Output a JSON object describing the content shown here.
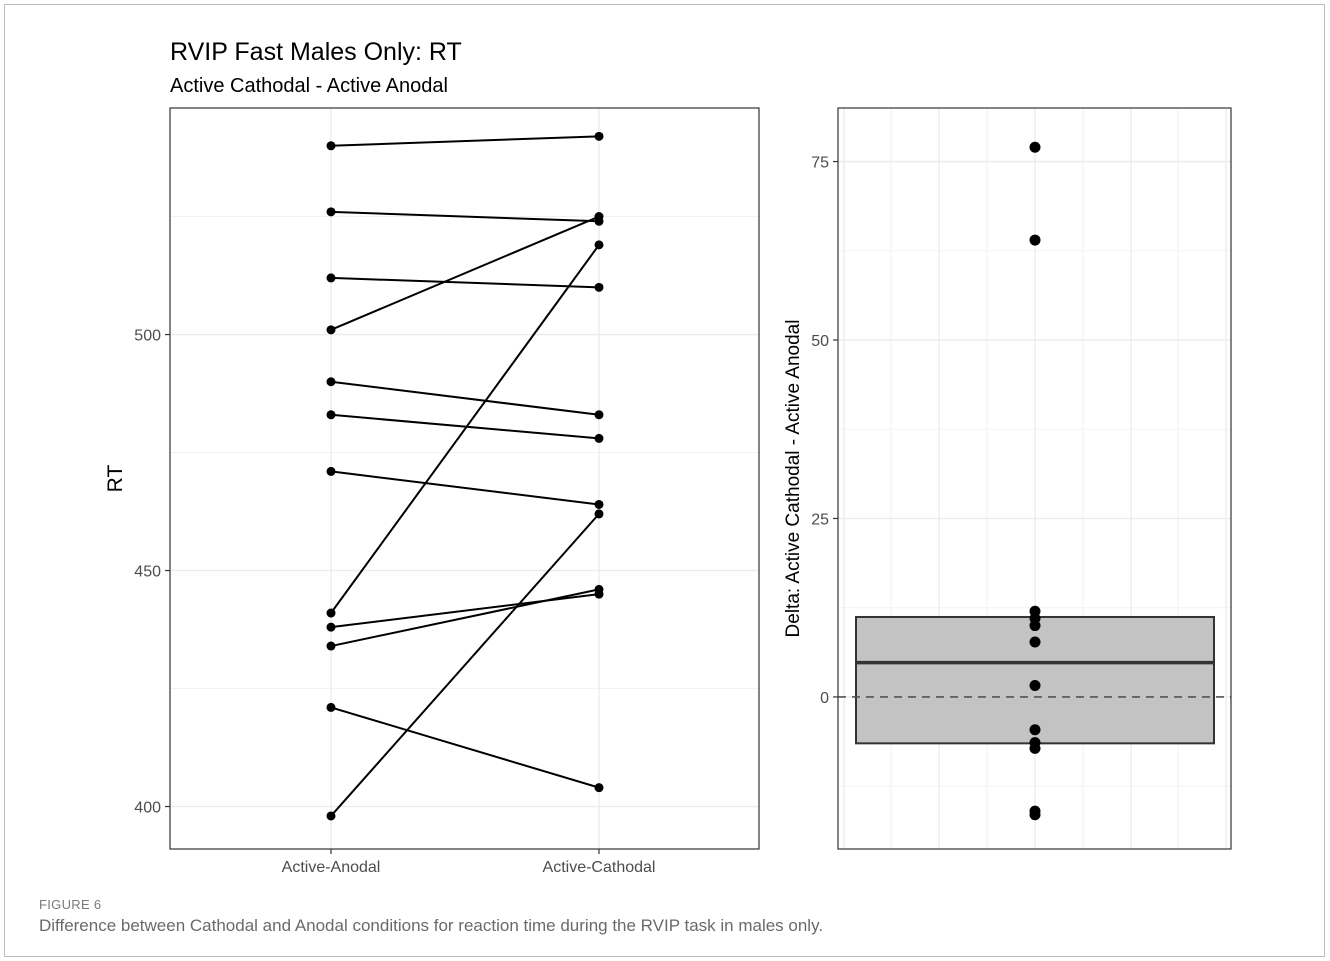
{
  "figure": {
    "label": "FIGURE 6",
    "caption": "Difference between Cathodal and Anodal conditions for reaction time during the RVIP task in males only."
  },
  "chart_data": [
    {
      "type": "line",
      "title": "RVIP Fast Males Only: RT",
      "subtitle": "Active Cathodal - Active Anodal",
      "xlabel": "",
      "ylabel": "RT",
      "categories": [
        "Active-Anodal",
        "Active-Cathodal"
      ],
      "yticks": [
        400,
        450,
        500
      ],
      "ylim": [
        391,
        548
      ],
      "grid": true,
      "pairs": [
        [
          540,
          542
        ],
        [
          526,
          524
        ],
        [
          512,
          510
        ],
        [
          501,
          525
        ],
        [
          490,
          483
        ],
        [
          483,
          478
        ],
        [
          471,
          464
        ],
        [
          441,
          519
        ],
        [
          438,
          445
        ],
        [
          434,
          446
        ],
        [
          421,
          404
        ],
        [
          398,
          462
        ]
      ],
      "colors": {
        "line": "#000000",
        "point": "#000000",
        "grid": "#ebebeb"
      }
    },
    {
      "type": "box",
      "xlabel": "",
      "ylabel": "Delta: Active Cathodal - Active Anodal",
      "yticks": [
        0,
        25,
        50,
        75
      ],
      "ylim": [
        -21.3,
        82.5
      ],
      "grid": true,
      "reference_line": 0,
      "box": {
        "q1": -6.5,
        "median": 4.8,
        "q3": 11.2,
        "whisker_low": -7.2,
        "whisker_high": 11.2
      },
      "points": [
        77,
        64,
        12,
        11,
        10,
        7.7,
        1.6,
        -4.6,
        -6.4,
        -7.2,
        -16,
        -16.5
      ],
      "colors": {
        "box_fill": "#c3c3c3",
        "box_line": "#333333",
        "point": "#000000",
        "grid": "#ebebeb"
      }
    }
  ]
}
